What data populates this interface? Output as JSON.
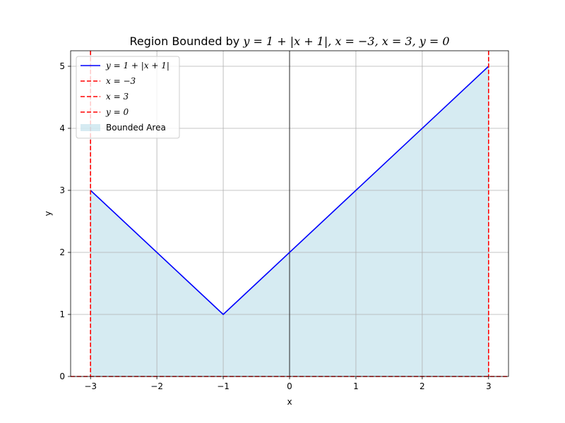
{
  "chart_data": {
    "type": "line",
    "title_prefix": "Region Bounded by ",
    "title_math": "y = 1 + |x + 1|, x = −3, x = 3, y = 0",
    "xlabel": "x",
    "ylabel": "y",
    "xlim": [
      -3.3,
      3.3
    ],
    "ylim": [
      0,
      5.25
    ],
    "grid": true,
    "legend_position": "upper-left",
    "x_ticks": [
      -3,
      -2,
      -1,
      0,
      1,
      2,
      3
    ],
    "x_tick_labels": [
      "−3",
      "−2",
      "−1",
      "0",
      "1",
      "2",
      "3"
    ],
    "y_ticks": [
      0,
      1,
      2,
      3,
      4,
      5
    ],
    "y_tick_labels": [
      "0",
      "1",
      "2",
      "3",
      "4",
      "5"
    ],
    "series": [
      {
        "name": "y = 1 + |x + 1|",
        "kind": "line",
        "color": "#0000ff",
        "x": [
          -3,
          -1,
          3
        ],
        "y": [
          3,
          1,
          5
        ]
      },
      {
        "name": "x = −3",
        "kind": "vline",
        "color": "#ff0000",
        "style": "dashed",
        "value": -3
      },
      {
        "name": "x = 3",
        "kind": "vline",
        "color": "#ff0000",
        "style": "dashed",
        "value": 3
      },
      {
        "name": "y = 0",
        "kind": "hline",
        "color": "#ff0000",
        "style": "dashed",
        "value": 0
      },
      {
        "name": "Bounded Area",
        "kind": "fill",
        "color": "#add8e6",
        "opacity": 0.5,
        "x": [
          -3,
          -1,
          3
        ],
        "y": [
          3,
          1,
          5
        ]
      }
    ]
  }
}
